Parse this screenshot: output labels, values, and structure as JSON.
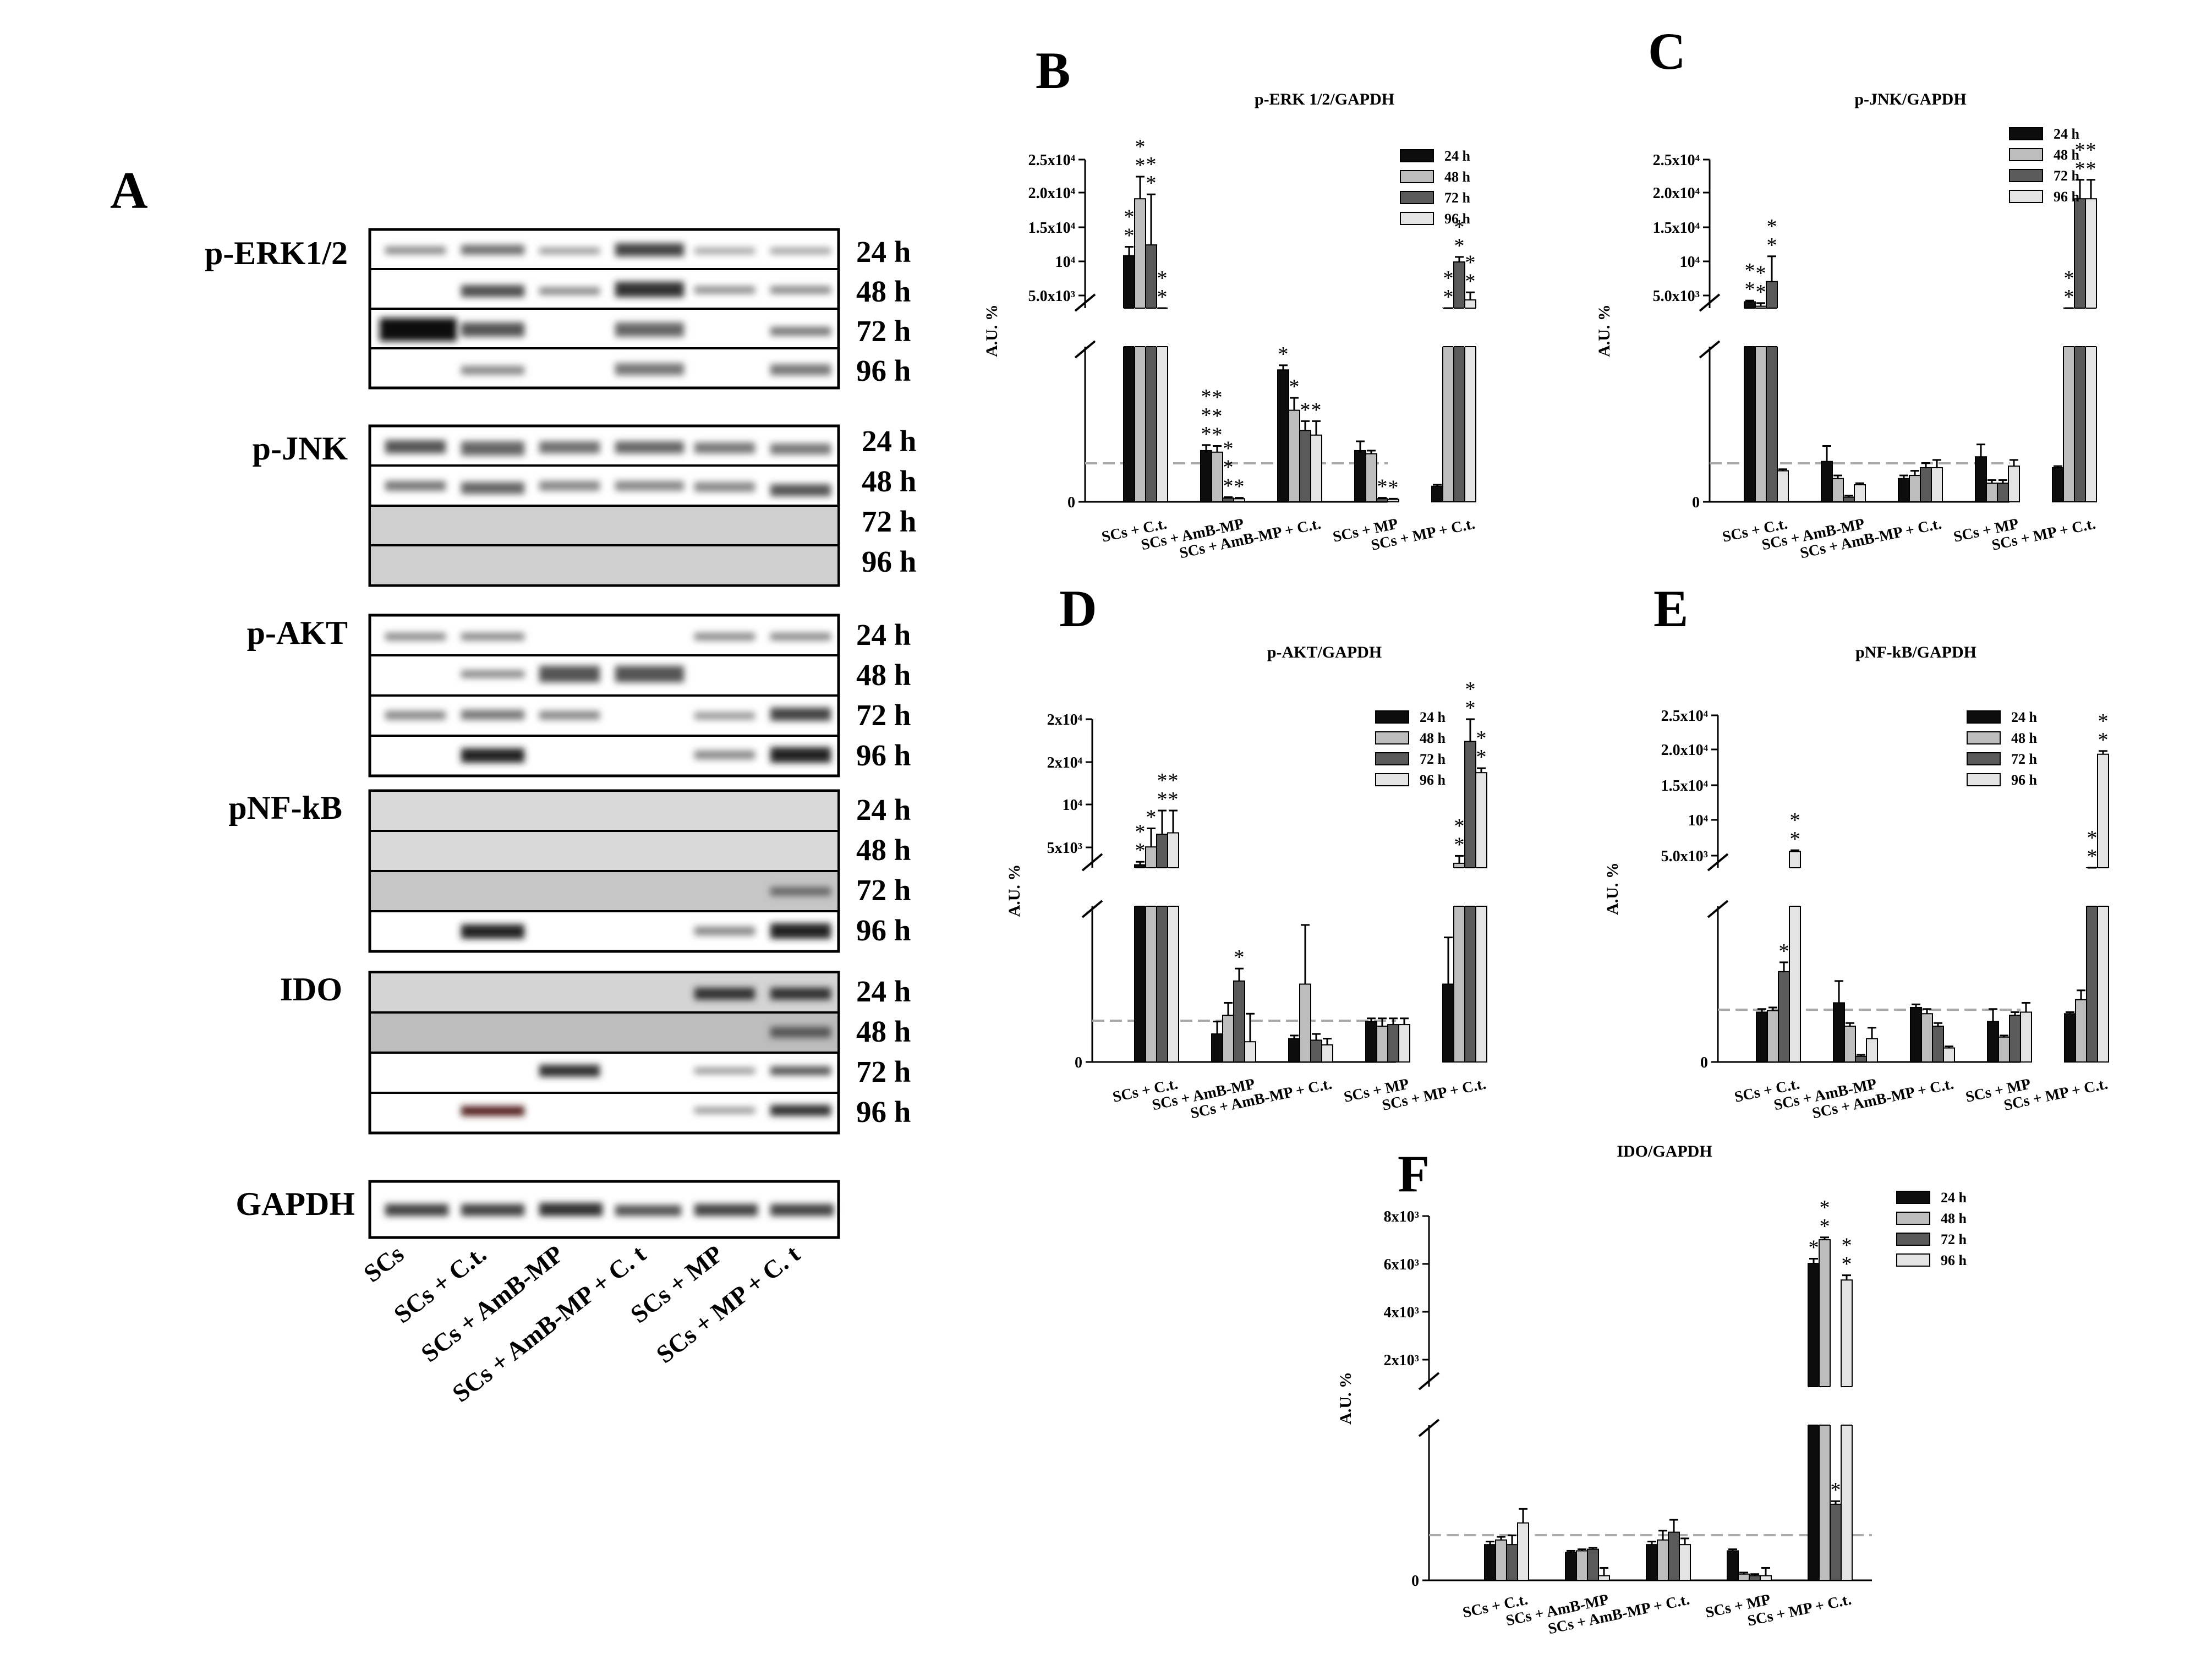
{
  "panel_a": {
    "letter": "A",
    "blots": [
      {
        "name": "p-ERK1/2",
        "times": [
          "24 h",
          "48 h",
          "72 h",
          "96 h"
        ]
      },
      {
        "name": "p-JNK",
        "times": [
          "24 h",
          "48 h",
          "72 h",
          "96 h"
        ]
      },
      {
        "name": "p-AKT",
        "times": [
          "24 h",
          "48 h",
          "72 h",
          "96 h"
        ]
      },
      {
        "name": "pNF-kB",
        "times": [
          "24 h",
          "48 h",
          "72 h",
          "96 h"
        ]
      },
      {
        "name": "IDO",
        "times": [
          "24 h",
          "48 h",
          "72 h",
          "96 h"
        ]
      },
      {
        "name": "GAPDH",
        "times": []
      }
    ],
    "lanes": [
      "SCs",
      "SCs + C.t.",
      "SCs + AmB-MP",
      "SCs + AmB-MP + C. t",
      "SCs + MP",
      "SCs + MP + C. t"
    ]
  },
  "chart_data": [
    {
      "letter": "B",
      "type": "bar",
      "title": "p-ERK 1/2/GAPDH",
      "ylabel": "A.U. %",
      "categories": [
        "SCs + C.t.",
        "SCs + AmB-MP",
        "SCs + AmB-MP + C.t.",
        "SCs + MP",
        "SCs + MP + C.t."
      ],
      "legend": [
        "24 h",
        "48 h",
        "72 h",
        "96 h"
      ],
      "upper_ticks": [
        "2.5x10⁴",
        "2.0x10⁴",
        "1.5x10⁴",
        "10⁴",
        "5.0x10³"
      ],
      "lower_ticks": [
        "0"
      ],
      "series": [
        {
          "name": "24 h",
          "values": [
            10800,
            165,
            425,
            165,
            50
          ]
        },
        {
          "name": "48 h",
          "values": [
            19800,
            160,
            295,
            155,
            1000
          ]
        },
        {
          "name": "72 h",
          "values": [
            12500,
            12,
            230,
            10,
            9800
          ]
        },
        {
          "name": "96 h",
          "values": [
            800,
            10,
            215,
            8,
            3800
          ]
        }
      ],
      "errors": [
        {
          "name": "24 h",
          "values": [
            1400,
            18,
            15,
            30,
            5
          ]
        },
        {
          "name": "48 h",
          "values": [
            3500,
            20,
            40,
            10,
            200
          ]
        },
        {
          "name": "72 h",
          "values": [
            8000,
            3,
            30,
            3,
            800
          ]
        },
        {
          "name": "96 h",
          "values": [
            200,
            3,
            45,
            2,
            1200
          ]
        }
      ],
      "stars": [
        [
          "**",
          "***",
          "*",
          "",
          ""
        ],
        [
          "**",
          "***",
          "*",
          "",
          "**"
        ],
        [
          "**",
          "***",
          "*",
          "*",
          "**"
        ],
        [
          "**",
          "*",
          "*",
          "*",
          "**"
        ]
      ]
    },
    {
      "letter": "C",
      "type": "bar",
      "title": "p-JNK/GAPDH",
      "ylabel": "A.U. %",
      "categories": [
        "SCs + C.t.",
        "SCs + AmB-MP",
        "SCs + AmB-MP + C.t.",
        "SCs + MP",
        "SCs + MP + C.t."
      ],
      "legend": [
        "24 h",
        "48 h",
        "72 h",
        "96 h"
      ],
      "upper_ticks": [
        "2.5x10⁴",
        "2.0x10⁴",
        "1.5x10⁴",
        "10⁴",
        "5.0x10³"
      ],
      "lower_ticks": [
        "0"
      ],
      "series": [
        {
          "name": "24 h",
          "values": [
            3500,
            130,
            75,
            145,
            110
          ]
        },
        {
          "name": "48 h",
          "values": [
            2800,
            75,
            85,
            60,
            1800
          ]
        },
        {
          "name": "72 h",
          "values": [
            6700,
            15,
            110,
            60,
            19800
          ]
        },
        {
          "name": "96 h",
          "values": [
            100,
            55,
            110,
            115,
            19800
          ]
        }
      ],
      "errors": [
        {
          "name": "24 h",
          "values": [
            200,
            50,
            10,
            40,
            5
          ]
        },
        {
          "name": "48 h",
          "values": [
            500,
            10,
            15,
            10,
            300
          ]
        },
        {
          "name": "72 h",
          "values": [
            4000,
            5,
            15,
            10,
            3000
          ]
        },
        {
          "name": "96 h",
          "values": [
            5,
            5,
            25,
            20,
            3000
          ]
        }
      ],
      "stars": [
        [
          "**",
          "",
          "",
          "",
          ""
        ],
        [
          "**",
          "",
          "",
          "",
          "**"
        ],
        [
          "**",
          "",
          "",
          "",
          "**"
        ],
        [
          "",
          "",
          "",
          "",
          "**"
        ]
      ]
    },
    {
      "letter": "D",
      "type": "bar",
      "title": "p-AKT/GAPDH",
      "ylabel": "A.U. %",
      "categories": [
        "SCs + C.t.",
        "SCs + AmB-MP",
        "SCs + AmB-MP + C.t.",
        "SCs + MP",
        "SCs + MP + C.t."
      ],
      "legend": [
        "24 h",
        "48 h",
        "72 h",
        "96 h"
      ],
      "upper_ticks": [
        "2x10⁴",
        "2x10⁴",
        "10⁴",
        "5x10³"
      ],
      "lower_ticks": [
        "0"
      ],
      "series": [
        {
          "name": "24 h",
          "values": [
            2400,
            90,
            75,
            130,
            250
          ]
        },
        {
          "name": "48 h",
          "values": [
            4800,
            150,
            250,
            115,
            2600
          ]
        },
        {
          "name": "72 h",
          "values": [
            6500,
            260,
            70,
            120,
            19000
          ]
        },
        {
          "name": "96 h",
          "values": [
            6700,
            65,
            55,
            120,
            14800
          ]
        }
      ],
      "errors": [
        {
          "name": "24 h",
          "values": [
            400,
            40,
            10,
            10,
            150
          ]
        },
        {
          "name": "48 h",
          "values": [
            2500,
            40,
            190,
            25,
            1000
          ]
        },
        {
          "name": "72 h",
          "values": [
            3200,
            40,
            20,
            20,
            4000
          ]
        },
        {
          "name": "96 h",
          "values": [
            3000,
            90,
            20,
            20,
            600
          ]
        }
      ],
      "stars": [
        [
          "**",
          "",
          "",
          "",
          ""
        ],
        [
          "*",
          "",
          "",
          "",
          "**"
        ],
        [
          "**",
          "*",
          "",
          "",
          "**"
        ],
        [
          "**",
          "",
          "",
          "",
          "**"
        ]
      ]
    },
    {
      "letter": "E",
      "type": "bar",
      "title": "pNF-kB/GAPDH",
      "ylabel": "A.U. %",
      "categories": [
        "SCs + C.t.",
        "SCs + AmB-MP",
        "SCs + AmB-MP + C.t.",
        "SCs + MP",
        "SCs + MP + C.t."
      ],
      "legend": [
        "24 h",
        "48 h",
        "72 h",
        "96 h"
      ],
      "upper_ticks": [
        "2.5x10⁴",
        "2.0x10⁴",
        "1.5x10⁴",
        "10⁴",
        "5.0x10³"
      ],
      "lower_ticks": [
        "0"
      ],
      "series": [
        {
          "name": "24 h",
          "values": [
            160,
            190,
            175,
            130,
            155
          ]
        },
        {
          "name": "48 h",
          "values": [
            165,
            115,
            155,
            80,
            200
          ]
        },
        {
          "name": "72 h",
          "values": [
            290,
            18,
            115,
            150,
            1500
          ]
        },
        {
          "name": "96 h",
          "values": [
            5000,
            75,
            45,
            160,
            20000
          ]
        }
      ],
      "errors": [
        {
          "name": "24 h",
          "values": [
            10,
            70,
            10,
            40,
            5
          ]
        },
        {
          "name": "48 h",
          "values": [
            10,
            10,
            15,
            5,
            30
          ]
        },
        {
          "name": "72 h",
          "values": [
            30,
            5,
            10,
            10,
            200
          ]
        },
        {
          "name": "96 h",
          "values": [
            200,
            35,
            5,
            30,
            500
          ]
        }
      ],
      "stars": [
        [
          "",
          "",
          "",
          "",
          ""
        ],
        [
          "",
          "",
          "",
          "",
          ""
        ],
        [
          "*",
          "",
          "",
          "",
          "**"
        ],
        [
          "**",
          "",
          "",
          "",
          "**"
        ]
      ]
    },
    {
      "letter": "F",
      "type": "bar",
      "title": "IDO/GAPDH",
      "ylabel": "A.U. %",
      "categories": [
        "SCs + C.t.",
        "SCs + AmB-MP",
        "SCs + AmB-MP + C.t.",
        "SCs + MP",
        "SCs + MP + C.t."
      ],
      "legend": [
        "24 h",
        "48 h",
        "72 h",
        "96 h"
      ],
      "upper_ticks": [
        "8x10³",
        "6x10³",
        "4x10³",
        "2x10³"
      ],
      "lower_ticks": [
        "0"
      ],
      "series": [
        {
          "name": "24 h",
          "values": [
            115,
            90,
            115,
            95,
            6200
          ]
        },
        {
          "name": "48 h",
          "values": [
            130,
            95,
            130,
            20,
            7200
          ]
        },
        {
          "name": "72 h",
          "values": [
            115,
            100,
            155,
            15,
            245
          ]
        },
        {
          "name": "96 h",
          "values": [
            185,
            15,
            115,
            15,
            5500
          ]
        }
      ],
      "errors": [
        {
          "name": "24 h",
          "values": [
            10,
            5,
            10,
            5,
            200
          ]
        },
        {
          "name": "48 h",
          "values": [
            10,
            5,
            30,
            5,
            100
          ]
        },
        {
          "name": "72 h",
          "values": [
            30,
            5,
            40,
            5,
            10
          ]
        },
        {
          "name": "96 h",
          "values": [
            45,
            25,
            20,
            25,
            200
          ]
        }
      ],
      "stars": [
        [
          "",
          "",
          "",
          "",
          "*"
        ],
        [
          "",
          "",
          "",
          "",
          "**"
        ],
        [
          "",
          "",
          "",
          "",
          "*"
        ],
        [
          "",
          "",
          "",
          "",
          "**"
        ]
      ]
    }
  ]
}
